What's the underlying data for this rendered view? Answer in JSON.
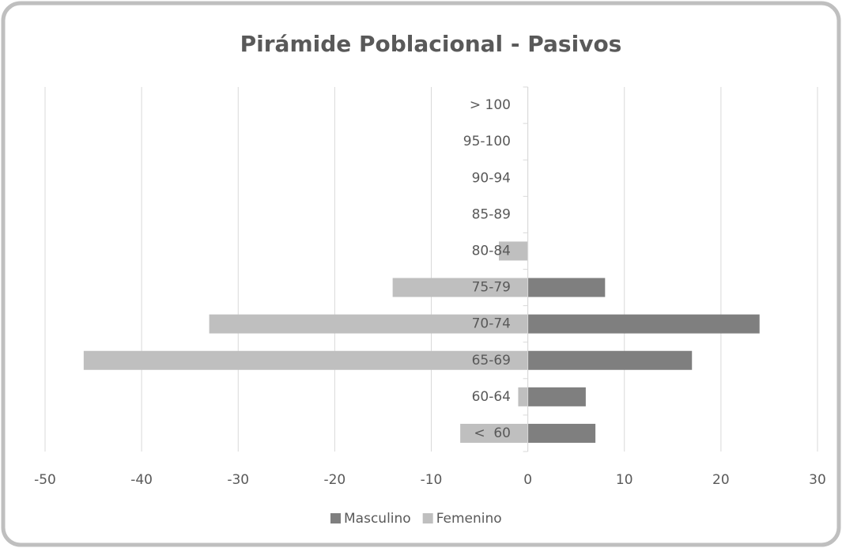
{
  "chart_data": {
    "type": "bar",
    "orientation": "horizontal",
    "stacked": "diverging",
    "title": "Pirámide Poblacional - Pasivos",
    "categories": [
      "<  60",
      "60-64",
      "65-69",
      "70-74",
      "75-79",
      "80-84",
      "85-89",
      "90-94",
      "95-100",
      "> 100"
    ],
    "series": [
      {
        "name": "Masculino",
        "color": "#7f7f7f",
        "values": [
          7,
          6,
          17,
          24,
          8,
          0,
          0,
          0,
          0,
          0
        ]
      },
      {
        "name": "Femenino",
        "color": "#bfbfbf",
        "values": [
          -7,
          -1,
          -46,
          -33,
          -14,
          -3,
          0,
          0,
          0,
          0
        ]
      }
    ],
    "xlim": [
      -50,
      30
    ],
    "xticks": [
      -50,
      -40,
      -30,
      -20,
      -10,
      0,
      10,
      20,
      30
    ],
    "grid": true,
    "legend": "bottom"
  }
}
